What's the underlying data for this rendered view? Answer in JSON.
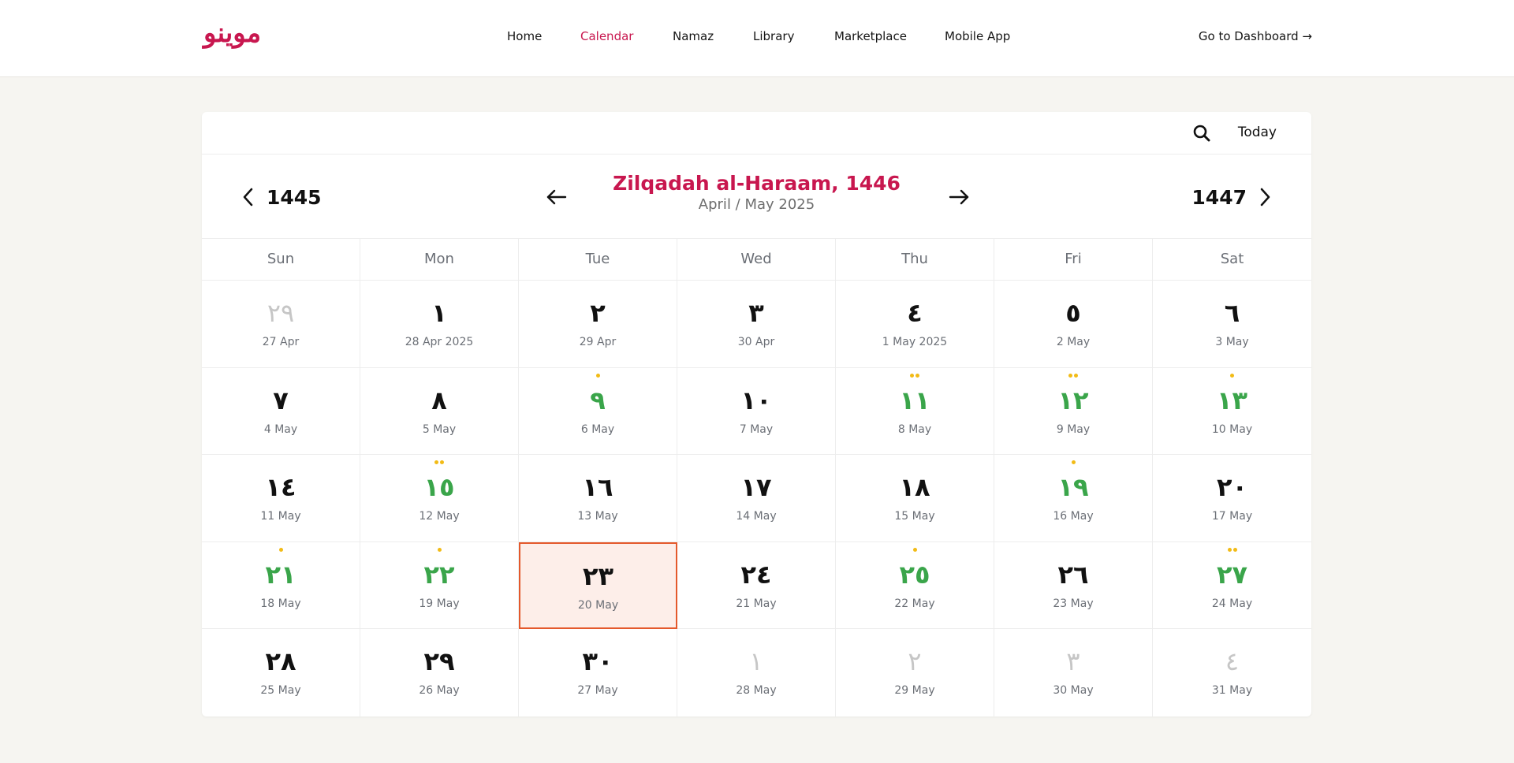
{
  "brand": {
    "logo_text": "موينو",
    "accent": "#c8174f"
  },
  "nav": {
    "items": [
      {
        "label": "Home",
        "active": false
      },
      {
        "label": "Calendar",
        "active": true
      },
      {
        "label": "Namaz",
        "active": false
      },
      {
        "label": "Library",
        "active": false
      },
      {
        "label": "Marketplace",
        "active": false
      },
      {
        "label": "Mobile App",
        "active": false
      }
    ],
    "dashboard_label": "Go to Dashboard →"
  },
  "toolbar": {
    "search_icon": "search-icon",
    "today_label": "Today"
  },
  "header": {
    "prev_year": "1445",
    "next_year": "1447",
    "month_title": "Zilqadah al-Haraam, 1446",
    "month_subtitle": "April / May 2025"
  },
  "weekdays": [
    "Sun",
    "Mon",
    "Tue",
    "Wed",
    "Thu",
    "Fri",
    "Sat"
  ],
  "colors": {
    "highlight_green": "#3aa54a",
    "event_dot": "#f2bb16",
    "today_border": "#e4592c",
    "today_fill": "#fdeee9"
  },
  "days": [
    {
      "hijri": "٢٩",
      "greg": "27 Apr",
      "muted": true,
      "green": false,
      "dots": 0
    },
    {
      "hijri": "١",
      "greg": "28 Apr 2025",
      "muted": false,
      "green": false,
      "dots": 0
    },
    {
      "hijri": "٢",
      "greg": "29 Apr",
      "muted": false,
      "green": false,
      "dots": 0
    },
    {
      "hijri": "٣",
      "greg": "30 Apr",
      "muted": false,
      "green": false,
      "dots": 0
    },
    {
      "hijri": "٤",
      "greg": "1 May 2025",
      "muted": false,
      "green": false,
      "dots": 0
    },
    {
      "hijri": "٥",
      "greg": "2 May",
      "muted": false,
      "green": false,
      "dots": 0
    },
    {
      "hijri": "٦",
      "greg": "3 May",
      "muted": false,
      "green": false,
      "dots": 0
    },
    {
      "hijri": "٧",
      "greg": "4 May",
      "muted": false,
      "green": false,
      "dots": 0
    },
    {
      "hijri": "٨",
      "greg": "5 May",
      "muted": false,
      "green": false,
      "dots": 0
    },
    {
      "hijri": "٩",
      "greg": "6 May",
      "muted": false,
      "green": true,
      "dots": 1
    },
    {
      "hijri": "١٠",
      "greg": "7 May",
      "muted": false,
      "green": false,
      "dots": 0
    },
    {
      "hijri": "١١",
      "greg": "8 May",
      "muted": false,
      "green": true,
      "dots": 2
    },
    {
      "hijri": "١٢",
      "greg": "9 May",
      "muted": false,
      "green": true,
      "dots": 2
    },
    {
      "hijri": "١٣",
      "greg": "10 May",
      "muted": false,
      "green": true,
      "dots": 1
    },
    {
      "hijri": "١٤",
      "greg": "11 May",
      "muted": false,
      "green": false,
      "dots": 0
    },
    {
      "hijri": "١٥",
      "greg": "12 May",
      "muted": false,
      "green": true,
      "dots": 2
    },
    {
      "hijri": "١٦",
      "greg": "13 May",
      "muted": false,
      "green": false,
      "dots": 0
    },
    {
      "hijri": "١٧",
      "greg": "14 May",
      "muted": false,
      "green": false,
      "dots": 0
    },
    {
      "hijri": "١٨",
      "greg": "15 May",
      "muted": false,
      "green": false,
      "dots": 0
    },
    {
      "hijri": "١٩",
      "greg": "16 May",
      "muted": false,
      "green": true,
      "dots": 1
    },
    {
      "hijri": "٢٠",
      "greg": "17 May",
      "muted": false,
      "green": false,
      "dots": 0
    },
    {
      "hijri": "٢١",
      "greg": "18 May",
      "muted": false,
      "green": true,
      "dots": 1
    },
    {
      "hijri": "٢٢",
      "greg": "19 May",
      "muted": false,
      "green": true,
      "dots": 1
    },
    {
      "hijri": "٢٣",
      "greg": "20 May",
      "muted": false,
      "green": false,
      "dots": 0,
      "today": true
    },
    {
      "hijri": "٢٤",
      "greg": "21 May",
      "muted": false,
      "green": false,
      "dots": 0
    },
    {
      "hijri": "٢٥",
      "greg": "22 May",
      "muted": false,
      "green": true,
      "dots": 1
    },
    {
      "hijri": "٢٦",
      "greg": "23 May",
      "muted": false,
      "green": false,
      "dots": 0
    },
    {
      "hijri": "٢٧",
      "greg": "24 May",
      "muted": false,
      "green": true,
      "dots": 2
    },
    {
      "hijri": "٢٨",
      "greg": "25 May",
      "muted": false,
      "green": false,
      "dots": 0
    },
    {
      "hijri": "٢٩",
      "greg": "26 May",
      "muted": false,
      "green": false,
      "dots": 0
    },
    {
      "hijri": "٣٠",
      "greg": "27 May",
      "muted": false,
      "green": false,
      "dots": 0
    },
    {
      "hijri": "١",
      "greg": "28 May",
      "muted": true,
      "green": false,
      "dots": 0
    },
    {
      "hijri": "٢",
      "greg": "29 May",
      "muted": true,
      "green": false,
      "dots": 0
    },
    {
      "hijri": "٣",
      "greg": "30 May",
      "muted": true,
      "green": false,
      "dots": 0
    },
    {
      "hijri": "٤",
      "greg": "31 May",
      "muted": true,
      "green": false,
      "dots": 0
    }
  ]
}
